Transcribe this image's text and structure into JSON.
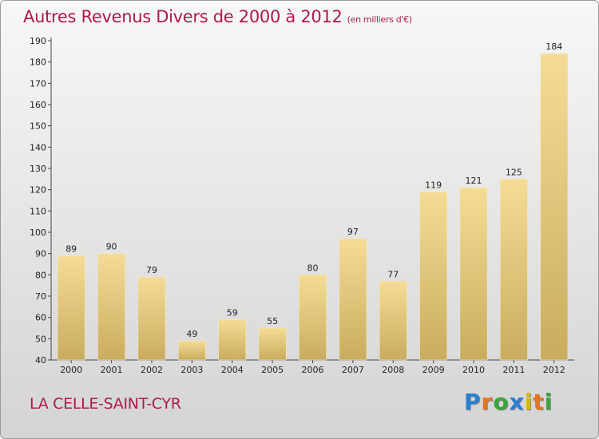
{
  "header": {
    "title": "Autres Revenus Divers de 2000 à 2012",
    "subtitle": "(en milliers d'€)"
  },
  "commune": "LA CELLE-SAINT-CYR",
  "logo": {
    "text": "Proxiti",
    "letters": [
      "P",
      "r",
      "o",
      "x",
      "i",
      "t",
      "i"
    ],
    "colors": [
      "#2a7fcf",
      "#e8741e",
      "#3aa63a",
      "#2a7fcf",
      "#e0b800",
      "#e8741e",
      "#3aa63a"
    ]
  },
  "colors": {
    "title": "#b0184c",
    "bar_top": "#f5dc96",
    "bar_bottom": "#c9ac5f"
  },
  "chart_data": {
    "type": "bar",
    "title": "Autres Revenus Divers de 2000 à 2012",
    "subtitle": "(en milliers d'€)",
    "categories": [
      "2000",
      "2001",
      "2002",
      "2003",
      "2004",
      "2005",
      "2006",
      "2007",
      "2008",
      "2009",
      "2010",
      "2011",
      "2012"
    ],
    "values": [
      89,
      90,
      79,
      49,
      59,
      55,
      80,
      97,
      77,
      119,
      121,
      125,
      184
    ],
    "ylim": [
      40,
      190
    ],
    "yticks": [
      40,
      50,
      60,
      70,
      80,
      90,
      100,
      110,
      120,
      130,
      140,
      150,
      160,
      170,
      180,
      190
    ],
    "grid": false,
    "legend": "none",
    "data_labels": true
  }
}
